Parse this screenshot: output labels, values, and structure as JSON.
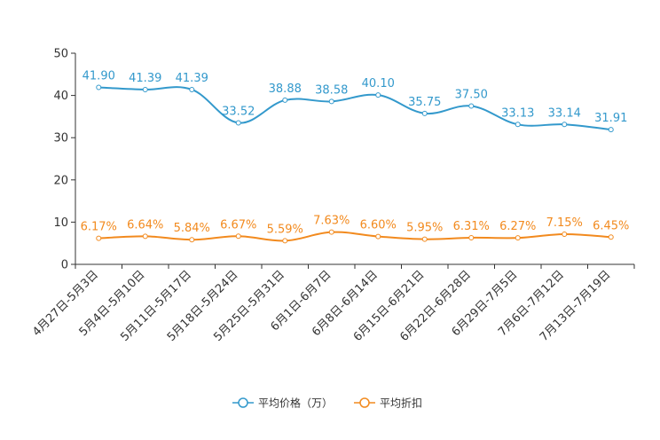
{
  "chart_data": {
    "type": "line",
    "title": "",
    "xlabel": "",
    "ylabel": "",
    "ylim": [
      0,
      50
    ],
    "yticks": [
      0,
      10,
      20,
      30,
      40,
      50
    ],
    "grid": false,
    "legend_position": "bottom-center",
    "categories": [
      "4月27日-5月3日",
      "5月4日-5月10日",
      "5月11日-5月17日",
      "5月18日-5月24日",
      "5月25日-5月31日",
      "6月1日-6月7日",
      "6月8日-6月14日",
      "6月15日-6月21日",
      "6月22日-6月28日",
      "6月29日-7月5日",
      "7月6日-7月12日",
      "7月13日-7月19日"
    ],
    "series": [
      {
        "name": "平均价格（万）",
        "color": "#3399cc",
        "values": [
          41.9,
          41.39,
          41.39,
          33.52,
          38.88,
          38.58,
          40.1,
          35.75,
          37.5,
          33.13,
          33.14,
          31.91
        ],
        "labels": [
          "41.90",
          "41.39",
          "41.39",
          "33.52",
          "38.88",
          "38.58",
          "40.10",
          "35.75",
          "37.50",
          "33.13",
          "33.14",
          "31.91"
        ]
      },
      {
        "name": "平均折扣",
        "color": "#f28a1e",
        "values": [
          6.17,
          6.64,
          5.84,
          6.67,
          5.59,
          7.63,
          6.6,
          5.95,
          6.31,
          6.27,
          7.15,
          6.45
        ],
        "labels": [
          "6.17%",
          "6.64%",
          "5.84%",
          "6.67%",
          "5.59%",
          "7.63%",
          "6.60%",
          "5.95%",
          "6.31%",
          "6.27%",
          "7.15%",
          "6.45%"
        ]
      }
    ]
  }
}
